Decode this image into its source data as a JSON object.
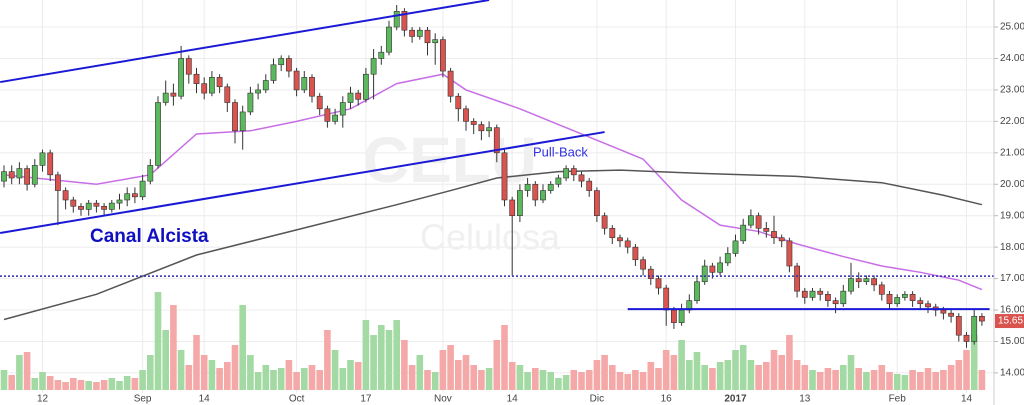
{
  "chart_data": {
    "type": "candlestick",
    "watermark": "CELU",
    "watermark_sub": "Celulosa",
    "annotations": [
      "Canal Alcista",
      "Pull-Back"
    ],
    "categories": [
      null,
      null,
      null,
      null,
      null,
      "12",
      null,
      null,
      null,
      null,
      null,
      null,
      null,
      null,
      null,
      null,
      null,
      null,
      "Sep",
      null,
      null,
      null,
      null,
      null,
      null,
      null,
      "14",
      null,
      null,
      null,
      null,
      null,
      null,
      null,
      null,
      null,
      null,
      null,
      "Oct",
      null,
      null,
      null,
      null,
      null,
      null,
      null,
      null,
      "17",
      null,
      null,
      null,
      null,
      null,
      null,
      null,
      null,
      null,
      "Nov",
      null,
      null,
      null,
      null,
      null,
      null,
      null,
      null,
      "14",
      null,
      null,
      null,
      null,
      null,
      null,
      null,
      null,
      null,
      null,
      "Dic",
      null,
      null,
      null,
      null,
      null,
      null,
      null,
      null,
      "16",
      null,
      null,
      null,
      null,
      null,
      null,
      null,
      null,
      "2017",
      null,
      null,
      null,
      null,
      null,
      null,
      null,
      null,
      "13",
      null,
      null,
      null,
      null,
      null,
      null,
      null,
      null,
      null,
      null,
      null,
      "Feb",
      null,
      null,
      null,
      null,
      null,
      null,
      null,
      null,
      "14",
      null,
      null
    ],
    "open": [
      20.1,
      20.4,
      20.2,
      20.5,
      20.0,
      20.6,
      21.0,
      20.3,
      19.8,
      19.5,
      19.3,
      19.2,
      19.4,
      19.3,
      19.2,
      19.4,
      19.5,
      19.7,
      19.6,
      20.1,
      20.6,
      22.6,
      22.9,
      22.8,
      24.0,
      23.5,
      23.2,
      22.9,
      23.4,
      23.1,
      22.6,
      21.7,
      22.3,
      22.9,
      23.0,
      23.3,
      23.8,
      24.0,
      23.6,
      23.0,
      23.4,
      22.8,
      22.4,
      22.0,
      22.2,
      22.6,
      22.9,
      22.7,
      23.5,
      24.0,
      24.2,
      25.0,
      25.5,
      24.9,
      24.7,
      24.9,
      24.5,
      24.6,
      23.6,
      22.8,
      22.4,
      22.0,
      21.9,
      21.7,
      21.8,
      21.0,
      19.5,
      19.0,
      19.8,
      20.0,
      19.5,
      19.8,
      20.0,
      20.2,
      20.5,
      20.3,
      20.1,
      19.8,
      19.0,
      18.6,
      18.3,
      18.2,
      18.0,
      17.6,
      17.3,
      17.0,
      16.7,
      16.0,
      15.6,
      16.0,
      16.3,
      16.9,
      17.4,
      17.2,
      17.5,
      17.8,
      18.2,
      18.7,
      19.0,
      18.6,
      18.5,
      18.3,
      18.2,
      17.4,
      16.6,
      16.4,
      16.6,
      16.5,
      16.3,
      16.2,
      16.6,
      17.0,
      16.9,
      17.0,
      16.8,
      16.5,
      16.2,
      16.4,
      16.5,
      16.3,
      16.2,
      16.1,
      16.0,
      15.9,
      15.8,
      15.2,
      15.0,
      15.8
    ],
    "high": [
      20.6,
      20.6,
      20.7,
      20.6,
      20.8,
      21.1,
      21.1,
      20.4,
      19.9,
      19.6,
      19.4,
      19.5,
      19.5,
      19.4,
      19.5,
      19.7,
      19.9,
      19.9,
      20.3,
      20.8,
      22.8,
      23.3,
      23.2,
      24.4,
      24.1,
      23.7,
      23.4,
      23.6,
      23.5,
      23.2,
      22.7,
      22.5,
      23.1,
      23.2,
      23.5,
      24.0,
      24.1,
      24.1,
      23.7,
      23.6,
      23.5,
      22.9,
      22.5,
      22.4,
      22.8,
      23.1,
      23.0,
      23.7,
      24.3,
      24.4,
      25.2,
      25.7,
      25.6,
      25.0,
      25.0,
      25.0,
      24.8,
      24.7,
      23.7,
      22.9,
      22.5,
      22.1,
      22.0,
      22.0,
      21.9,
      21.1,
      19.6,
      20.0,
      20.2,
      20.1,
      20.0,
      20.1,
      20.3,
      20.6,
      20.6,
      20.4,
      20.2,
      19.9,
      19.1,
      18.7,
      18.4,
      18.3,
      18.1,
      17.7,
      17.4,
      17.1,
      16.8,
      16.1,
      16.2,
      16.5,
      17.1,
      17.6,
      17.5,
      17.7,
      18.0,
      18.4,
      18.9,
      19.2,
      19.1,
      18.8,
      19.0,
      18.4,
      18.3,
      17.5,
      16.7,
      16.7,
      16.7,
      16.6,
      16.4,
      16.8,
      17.5,
      17.2,
      17.1,
      17.1,
      16.9,
      16.6,
      16.5,
      16.6,
      16.6,
      16.4,
      16.3,
      16.2,
      16.1,
      16.0,
      15.9,
      15.3,
      16.0,
      15.9
    ],
    "low": [
      19.9,
      20.0,
      20.0,
      19.8,
      19.9,
      20.4,
      20.1,
      18.7,
      19.2,
      19.1,
      19.0,
      19.0,
      19.1,
      19.0,
      19.1,
      19.2,
      19.3,
      19.4,
      19.5,
      20.0,
      20.5,
      22.5,
      22.5,
      22.7,
      23.2,
      22.9,
      22.7,
      22.8,
      22.9,
      22.3,
      21.3,
      21.1,
      22.2,
      22.7,
      22.9,
      23.2,
      23.6,
      23.4,
      22.8,
      22.9,
      22.6,
      22.2,
      21.8,
      21.9,
      21.8,
      22.4,
      22.5,
      22.6,
      22.7,
      23.8,
      24.1,
      24.9,
      24.7,
      24.5,
      24.6,
      24.1,
      23.8,
      23.4,
      22.6,
      22.0,
      21.7,
      21.6,
      21.4,
      21.5,
      20.7,
      19.3,
      17.1,
      18.8,
      19.6,
      19.3,
      19.4,
      19.7,
      19.9,
      20.1,
      20.1,
      19.9,
      19.6,
      18.8,
      18.4,
      18.1,
      18.0,
      17.8,
      17.4,
      17.1,
      16.8,
      16.5,
      15.5,
      15.4,
      15.5,
      15.9,
      16.2,
      16.8,
      17.0,
      17.1,
      17.4,
      17.7,
      18.1,
      18.6,
      18.4,
      18.3,
      18.1,
      18.0,
      17.2,
      16.4,
      16.2,
      16.3,
      16.3,
      16.1,
      15.9,
      16.1,
      16.5,
      16.7,
      16.8,
      16.6,
      16.3,
      16.0,
      16.1,
      16.3,
      16.1,
      16.0,
      15.9,
      15.8,
      15.7,
      15.6,
      15.0,
      14.8,
      14.9,
      15.5
    ],
    "close": [
      20.4,
      20.2,
      20.5,
      20.0,
      20.6,
      21.0,
      20.3,
      19.8,
      19.5,
      19.3,
      19.2,
      19.4,
      19.3,
      19.2,
      19.4,
      19.5,
      19.7,
      19.6,
      20.1,
      20.6,
      22.6,
      22.9,
      22.8,
      24.0,
      23.5,
      23.2,
      22.9,
      23.4,
      23.1,
      22.6,
      21.7,
      22.3,
      22.9,
      23.0,
      23.3,
      23.8,
      24.0,
      23.6,
      23.0,
      23.4,
      22.8,
      22.4,
      22.0,
      22.2,
      22.6,
      22.9,
      22.7,
      23.5,
      24.0,
      24.2,
      25.0,
      25.5,
      24.9,
      24.7,
      24.9,
      24.5,
      24.6,
      23.6,
      22.8,
      22.4,
      22.0,
      21.9,
      21.7,
      21.8,
      21.0,
      19.5,
      19.0,
      19.8,
      20.0,
      19.5,
      19.8,
      20.0,
      20.2,
      20.5,
      20.3,
      20.1,
      19.8,
      19.0,
      18.6,
      18.3,
      18.2,
      18.0,
      17.6,
      17.3,
      17.0,
      16.7,
      16.0,
      15.6,
      16.0,
      16.3,
      16.9,
      17.4,
      17.2,
      17.5,
      17.8,
      18.2,
      18.7,
      19.0,
      18.6,
      18.5,
      18.3,
      18.2,
      17.4,
      16.6,
      16.4,
      16.6,
      16.5,
      16.3,
      16.2,
      16.6,
      17.0,
      16.9,
      17.0,
      16.8,
      16.5,
      16.2,
      16.4,
      16.5,
      16.3,
      16.2,
      16.1,
      16.0,
      15.9,
      15.8,
      15.2,
      15.0,
      15.8,
      15.65
    ],
    "volume": [
      20,
      15,
      35,
      38,
      12,
      18,
      14,
      10,
      8,
      12,
      10,
      9,
      8,
      10,
      12,
      9,
      14,
      12,
      20,
      35,
      98,
      60,
      85,
      40,
      25,
      55,
      35,
      30,
      22,
      28,
      45,
      85,
      35,
      18,
      25,
      20,
      22,
      30,
      18,
      22,
      25,
      20,
      60,
      40,
      22,
      30,
      28,
      70,
      55,
      65,
      60,
      70,
      50,
      25,
      35,
      20,
      18,
      40,
      45,
      30,
      35,
      25,
      20,
      22,
      50,
      65,
      28,
      25,
      18,
      22,
      20,
      18,
      12,
      15,
      20,
      18,
      20,
      30,
      35,
      25,
      18,
      16,
      20,
      18,
      28,
      22,
      40,
      35,
      50,
      30,
      38,
      25,
      22,
      28,
      30,
      40,
      45,
      30,
      25,
      28,
      40,
      35,
      55,
      30,
      25,
      20,
      18,
      22,
      20,
      25,
      35,
      22,
      18,
      20,
      25,
      18,
      16,
      15,
      20,
      18,
      22,
      18,
      20,
      25,
      30,
      40,
      55,
      20
    ],
    "up_color": "#5cb85c",
    "down_color": "#d9534f",
    "volume_up_color": "#a3d9a3",
    "volume_down_color": "#f5a8a8",
    "lines": [
      {
        "color": "#c86ee6",
        "x": [
          0,
          12,
          19,
          25,
          32,
          38,
          45,
          51,
          57,
          60,
          67,
          72,
          77,
          83,
          88,
          93,
          98,
          103,
          109,
          114,
          119,
          124,
          127
        ],
        "values": [
          20.3,
          20.0,
          20.3,
          21.6,
          21.7,
          22.0,
          22.4,
          23.2,
          23.5,
          23.0,
          22.4,
          21.9,
          21.4,
          20.8,
          19.5,
          18.7,
          18.5,
          18.1,
          17.7,
          17.4,
          17.2,
          16.95,
          16.65
        ]
      },
      {
        "color": "#555555",
        "x": [
          0,
          12,
          25,
          38,
          51,
          58,
          64,
          72,
          80,
          90,
          103,
          114,
          122,
          127
        ],
        "values": [
          15.7,
          16.5,
          17.75,
          18.55,
          19.35,
          19.8,
          20.2,
          20.4,
          20.45,
          20.35,
          20.25,
          20.05,
          19.65,
          19.35
        ]
      }
    ],
    "trendlines": [
      {
        "color": "#1a1ad6",
        "x": [
          -0.5,
          63
        ],
        "values": [
          23.25,
          25.86
        ]
      },
      {
        "color": "#1a1ad6",
        "x": [
          -0.5,
          78
        ],
        "values": [
          18.45,
          21.66
        ]
      },
      {
        "color": "#1a1ad6",
        "x": [
          81,
          128
        ],
        "values": [
          16.03,
          16.03
        ]
      }
    ],
    "dotted_level": {
      "color": "#2a2ab0",
      "value": 17.08
    },
    "ylim": [
      12.98,
      25.86
    ],
    "yticks": [
      {
        "value": 15,
        "label": "15.00"
      },
      {
        "value": 16,
        "label": "16.00"
      },
      {
        "value": 17,
        "label": "17.00"
      },
      {
        "value": 18,
        "label": "18.00"
      },
      {
        "value": 19,
        "label": "19.00"
      },
      {
        "value": 20,
        "label": "20.00"
      },
      {
        "value": 21,
        "label": "21.00"
      },
      {
        "value": 22,
        "label": "22.00"
      },
      {
        "value": 23,
        "label": "23.00"
      },
      {
        "value": 24,
        "label": "24.00"
      },
      {
        "value": 25,
        "label": "25.00"
      },
      {
        "value": 14,
        "label": "14.00"
      }
    ],
    "grid": true
  }
}
